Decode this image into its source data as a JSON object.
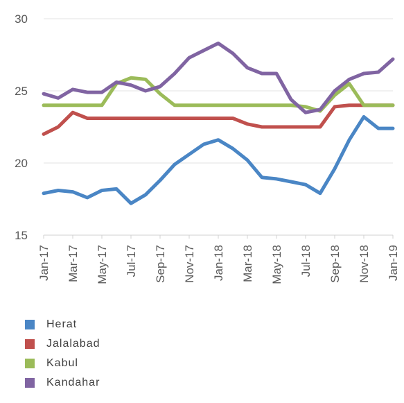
{
  "chart_data": {
    "type": "line",
    "title": "",
    "xlabel": "",
    "ylabel": "",
    "ylim": [
      15,
      30
    ],
    "yticks": [
      "15",
      "20",
      "25",
      "30"
    ],
    "grid": true,
    "legend_position": "bottom",
    "x_tick_labels": [
      "Jan-17",
      "Mar-17",
      "May-17",
      "Jul-17",
      "Sep-17",
      "Nov-17",
      "Jan-18",
      "Mar-18",
      "May-18",
      "Jul-18",
      "Sep-18",
      "Nov-18",
      "Jan-19"
    ],
    "x": [
      "Jan-17",
      "Feb-17",
      "Mar-17",
      "Apr-17",
      "May-17",
      "Jun-17",
      "Jul-17",
      "Aug-17",
      "Sep-17",
      "Oct-17",
      "Nov-17",
      "Dec-17",
      "Jan-18",
      "Feb-18",
      "Mar-18",
      "Apr-18",
      "May-18",
      "Jun-18",
      "Jul-18",
      "Aug-18",
      "Sep-18",
      "Oct-18",
      "Nov-18",
      "Dec-18",
      "Jan-19"
    ],
    "series": [
      {
        "name": "Herat",
        "color": "#4a86c5",
        "values": [
          17.9,
          18.1,
          18.0,
          17.6,
          18.1,
          18.2,
          17.2,
          17.8,
          18.8,
          19.9,
          20.6,
          21.3,
          21.6,
          21.0,
          20.2,
          19.0,
          18.9,
          18.7,
          18.5,
          17.9,
          19.6,
          21.6,
          23.2,
          22.4,
          22.4
        ]
      },
      {
        "name": "Jalalabad",
        "color": "#c0504d",
        "values": [
          22.0,
          22.5,
          23.5,
          23.1,
          23.1,
          23.1,
          23.1,
          23.1,
          23.1,
          23.1,
          23.1,
          23.1,
          23.1,
          23.1,
          22.7,
          22.5,
          22.5,
          22.5,
          22.5,
          22.5,
          23.9,
          24.0,
          24.0,
          24.0,
          24.0
        ]
      },
      {
        "name": "Kabul",
        "color": "#9bbb59",
        "values": [
          24.0,
          24.0,
          24.0,
          24.0,
          24.0,
          25.5,
          25.9,
          25.8,
          24.8,
          24.0,
          24.0,
          24.0,
          24.0,
          24.0,
          24.0,
          24.0,
          24.0,
          24.0,
          23.9,
          23.6,
          24.7,
          25.5,
          24.0,
          24.0,
          24.0
        ]
      },
      {
        "name": "Kandahar",
        "color": "#8064a2",
        "values": [
          24.8,
          24.5,
          25.1,
          24.9,
          24.9,
          25.6,
          25.4,
          25.0,
          25.3,
          26.2,
          27.3,
          27.8,
          28.3,
          27.6,
          26.6,
          26.2,
          26.2,
          24.4,
          23.5,
          23.7,
          25.0,
          25.8,
          26.2,
          26.3,
          27.2
        ]
      }
    ]
  }
}
